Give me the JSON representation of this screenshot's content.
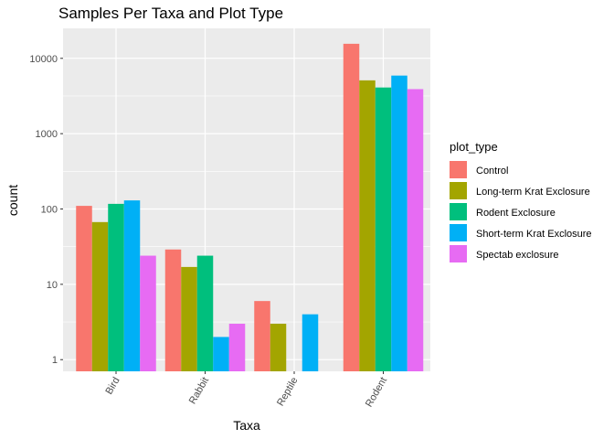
{
  "chart_data": {
    "type": "bar",
    "title": "Samples Per Taxa and Plot Type",
    "xlabel": "Taxa",
    "ylabel": "count",
    "yscale": "log10",
    "ylim": [
      0.7,
      25000
    ],
    "yticks": [
      1,
      10,
      100,
      1000,
      10000
    ],
    "ytick_labels": [
      "1",
      "10",
      "100",
      "1000",
      "10000"
    ],
    "categories": [
      "Bird",
      "Rabbit",
      "Reptile",
      "Rodent"
    ],
    "legend": {
      "title": "plot_type",
      "position": "right"
    },
    "grid": true,
    "series": [
      {
        "name": "Control",
        "color": "#F8766D",
        "values": [
          110,
          29,
          6,
          15600
        ]
      },
      {
        "name": "Long-term Krat Exclosure",
        "color": "#A3A500",
        "values": [
          67,
          17,
          3,
          5100
        ]
      },
      {
        "name": "Rodent Exclosure",
        "color": "#00BF7D",
        "values": [
          117,
          24,
          null,
          4100
        ]
      },
      {
        "name": "Short-term Krat Exclosure",
        "color": "#00B0F6",
        "values": [
          130,
          2,
          4,
          5900
        ]
      },
      {
        "name": "Spectab exclosure",
        "color": "#E76BF3",
        "values": [
          24,
          3,
          null,
          3900
        ]
      }
    ]
  }
}
